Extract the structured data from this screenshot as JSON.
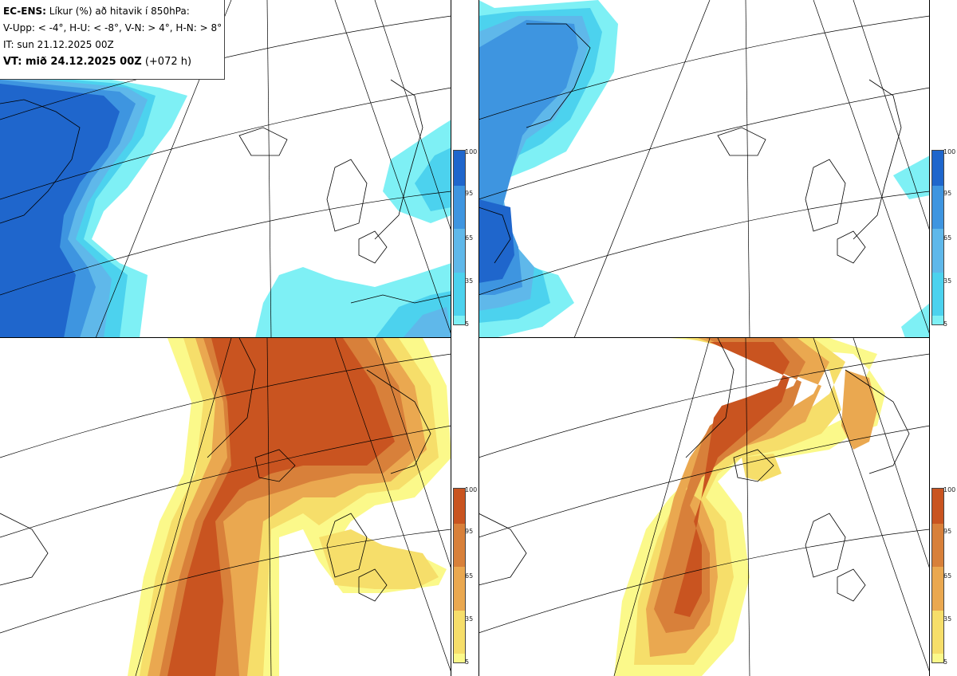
{
  "header": {
    "model": "EC-ENS:",
    "title": "Líkur (%) að hitavik í 850hPa:",
    "thresholds": "V-Upp: < -4°, H-U: < -8°, V-N: > 4°, H-N: > 8°",
    "initial_time": "IT: sun 21.12.2025 00Z",
    "valid_label": "VT: mið 24.12.2025 00Z",
    "valid_offset": "(+072 h)"
  },
  "panels": [
    {
      "name": "V-Upp",
      "palette": "blue"
    },
    {
      "name": "H-U",
      "palette": "blue"
    },
    {
      "name": "V-N",
      "palette": "orange"
    },
    {
      "name": "H-N",
      "palette": "orange"
    }
  ],
  "colorbar_ticks": [
    "100",
    "95",
    "65",
    "35",
    "5"
  ],
  "colors": {
    "blue": [
      "#7ef0f5",
      "#4cd2ee",
      "#5fb8ea",
      "#3e95e0",
      "#1f66cc"
    ],
    "orange": [
      "#fbf98a",
      "#f6de6a",
      "#eaa850",
      "#d8803a",
      "#c95420"
    ]
  }
}
